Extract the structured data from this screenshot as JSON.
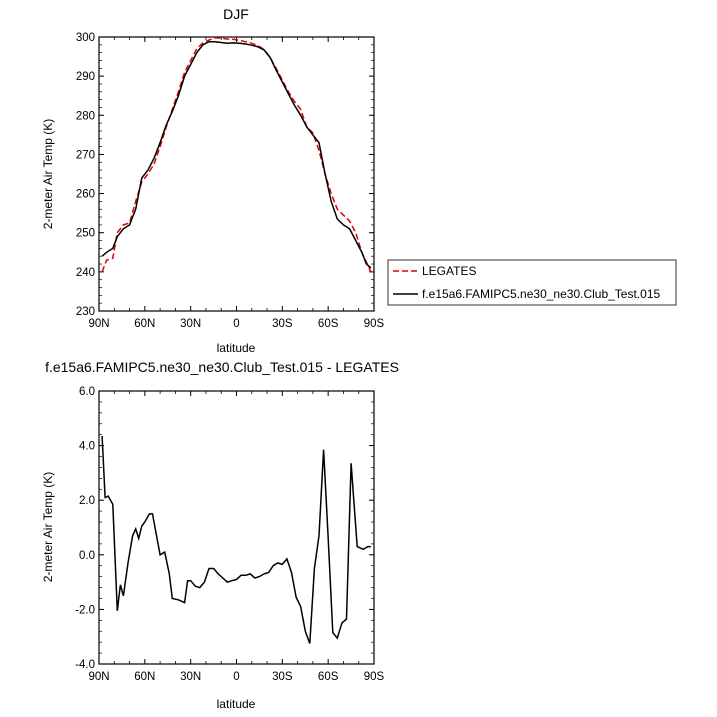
{
  "chart_data": [
    {
      "type": "line",
      "title": "DJF",
      "xlabel": "latitude",
      "ylabel": "2-meter Air Temp (K)",
      "xlim": [
        90,
        -90
      ],
      "ylim": [
        230,
        300
      ],
      "x_ticks": [
        90,
        60,
        30,
        0,
        -30,
        -60,
        -90
      ],
      "x_tick_labels": [
        "90N",
        "60N",
        "30N",
        "0",
        "30S",
        "60S",
        "90S"
      ],
      "y_ticks": [
        230,
        240,
        250,
        260,
        270,
        280,
        290,
        300
      ],
      "y_tick_labels": [
        "230",
        "240",
        "250",
        "260",
        "270",
        "280",
        "290",
        "300"
      ],
      "legend_position": "outside-right",
      "series": [
        {
          "name": "LEGATES",
          "color": "#dd0000",
          "dash": true,
          "x": [
            88,
            85,
            81,
            78,
            74,
            70,
            66,
            62,
            58,
            54,
            50,
            46,
            42,
            38,
            34,
            30,
            26,
            22,
            18,
            14,
            10,
            6,
            2,
            -2,
            -6,
            -10,
            -14,
            -18,
            -22,
            -26,
            -30,
            -34,
            -38,
            -42,
            -46,
            -50,
            -54,
            -58,
            -62,
            -66,
            -70,
            -74,
            -78,
            -82,
            -85,
            -88
          ],
          "y": [
            240,
            243,
            243.5,
            250,
            252,
            252.5,
            258,
            263,
            265,
            267.5,
            272,
            277,
            281.5,
            286,
            291,
            294,
            297,
            298.5,
            299.2,
            299.8,
            299.7,
            299.5,
            299.4,
            299.1,
            298.8,
            298.4,
            297.8,
            296.8,
            294.8,
            292,
            289,
            286,
            283.5,
            281.5,
            277,
            275.5,
            271,
            265,
            260,
            256,
            254.5,
            253,
            250,
            245,
            242.5,
            240
          ]
        },
        {
          "name": "f.e15a6.FAMIPC5.ne30_ne30.Club_Test.015",
          "color": "#000000",
          "dash": false,
          "x": [
            88,
            85,
            81,
            78,
            74,
            70,
            66,
            62,
            58,
            54,
            50,
            46,
            42,
            38,
            34,
            30,
            26,
            22,
            18,
            14,
            10,
            6,
            2,
            -2,
            -6,
            -10,
            -14,
            -18,
            -22,
            -26,
            -30,
            -34,
            -38,
            -42,
            -46,
            -50,
            -54,
            -58,
            -62,
            -66,
            -70,
            -74,
            -78,
            -82,
            -85,
            -88
          ],
          "y": [
            244,
            245,
            246,
            249,
            251,
            252,
            256,
            264,
            266,
            269,
            273,
            277.5,
            281,
            285,
            290,
            293,
            296,
            298,
            298.8,
            298.8,
            298.6,
            298.4,
            298.5,
            298.4,
            298.2,
            297.9,
            297.5,
            296.7,
            294.8,
            291.5,
            288.5,
            285.5,
            282.5,
            280,
            277,
            275,
            273,
            265,
            258,
            253.5,
            252,
            251,
            248,
            245,
            242,
            241
          ]
        }
      ]
    },
    {
      "type": "line",
      "title": "f.e15a6.FAMIPC5.ne30_ne30.Club_Test.015 - LEGATES",
      "xlabel": "latitude",
      "ylabel": "2-meter Air Temp (K)",
      "xlim": [
        90,
        -90
      ],
      "ylim": [
        -4.0,
        6.0
      ],
      "x_ticks": [
        90,
        60,
        30,
        0,
        -30,
        -60,
        -90
      ],
      "x_tick_labels": [
        "90N",
        "60N",
        "30N",
        "0",
        "30S",
        "60S",
        "90S"
      ],
      "y_ticks": [
        -4.0,
        -2.0,
        0.0,
        2.0,
        4.0,
        6.0
      ],
      "y_tick_labels": [
        "-4.0",
        "-2.0",
        "0.0",
        "2.0",
        "4.0",
        "6.0"
      ],
      "series": [
        {
          "color": "#000000",
          "dash": false,
          "x": [
            88,
            86,
            84,
            81,
            78,
            76,
            74,
            71,
            68,
            66,
            64,
            62,
            60,
            57,
            55,
            53,
            50,
            47,
            44,
            42,
            38,
            34,
            32,
            30,
            27,
            24,
            21,
            18,
            15,
            12,
            9,
            6,
            3,
            0,
            -3,
            -6,
            -9,
            -12,
            -15,
            -18,
            -21,
            -24,
            -27,
            -30,
            -33,
            -36,
            -39,
            -42,
            -45,
            -48,
            -51,
            -54,
            -57,
            -60,
            -63,
            -66,
            -69,
            -72,
            -75,
            -79,
            -83,
            -86,
            -88
          ],
          "y": [
            4.35,
            2.1,
            2.15,
            1.85,
            -2.05,
            -1.1,
            -1.5,
            -0.3,
            0.7,
            0.95,
            0.6,
            1.05,
            1.2,
            1.5,
            1.5,
            0.9,
            0.0,
            0.1,
            -0.7,
            -1.6,
            -1.65,
            -1.75,
            -0.95,
            -0.95,
            -1.15,
            -1.2,
            -1.0,
            -0.5,
            -0.5,
            -0.7,
            -0.85,
            -1.0,
            -0.95,
            -0.9,
            -0.75,
            -0.75,
            -0.7,
            -0.85,
            -0.8,
            -0.7,
            -0.65,
            -0.4,
            -0.3,
            -0.35,
            -0.15,
            -0.65,
            -1.55,
            -1.9,
            -2.8,
            -3.25,
            -0.5,
            0.7,
            3.85,
            0.6,
            -2.85,
            -3.05,
            -2.5,
            -2.35,
            3.35,
            0.3,
            0.2,
            0.3,
            0.3
          ]
        }
      ]
    }
  ]
}
